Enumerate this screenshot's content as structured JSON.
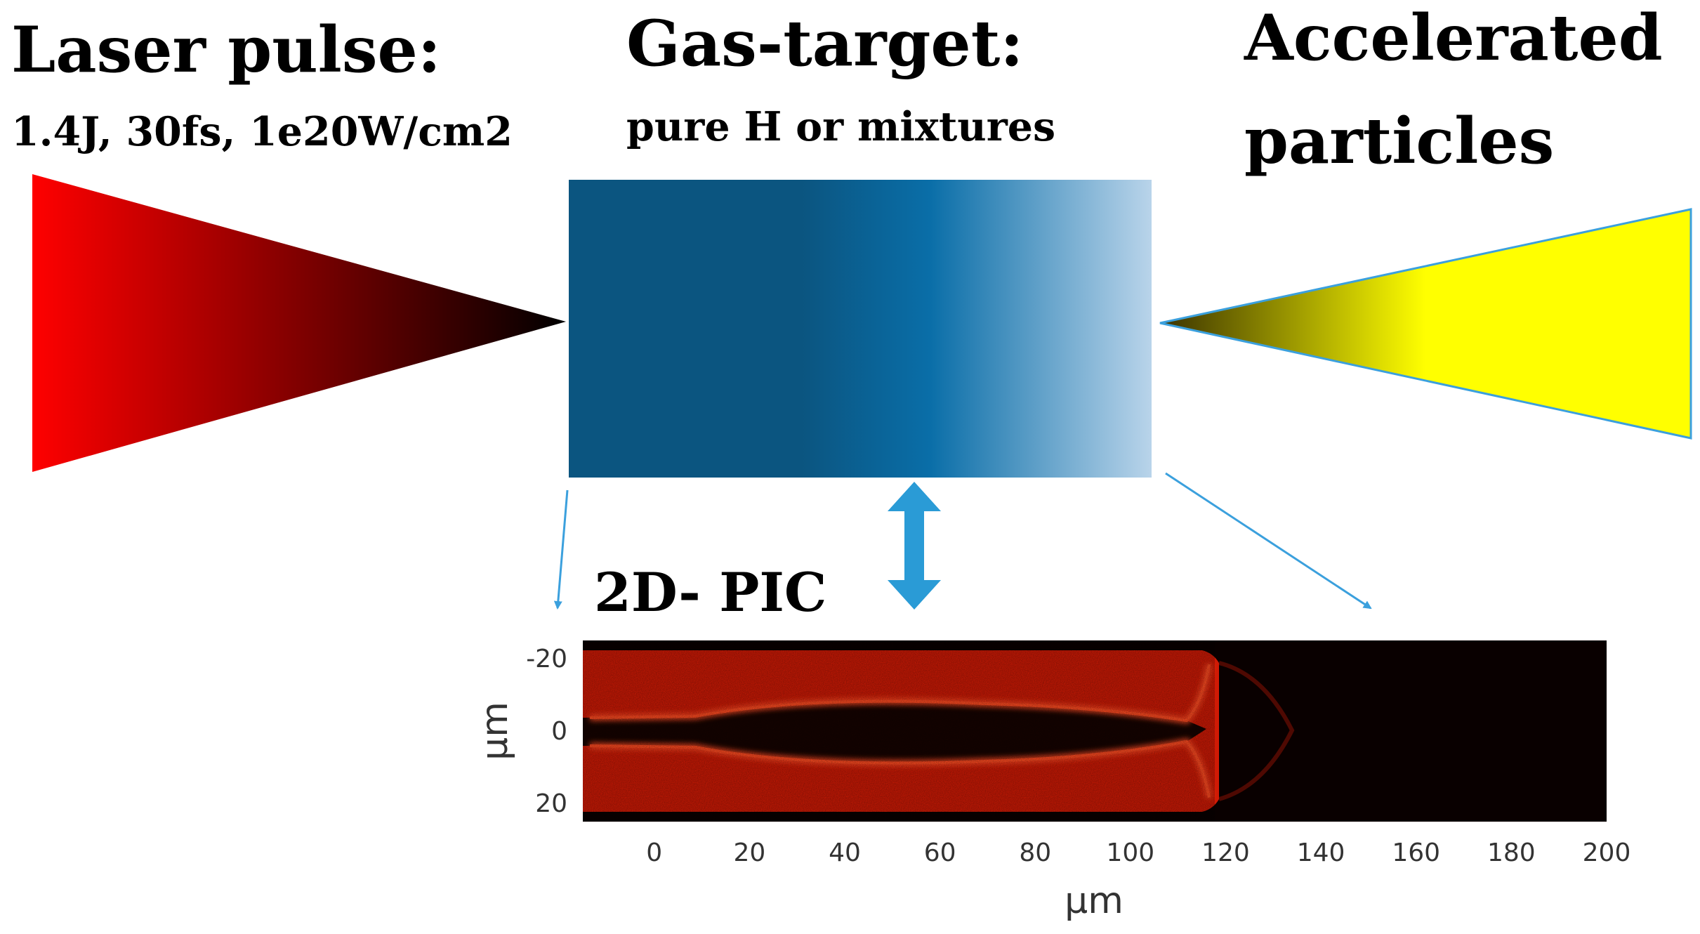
{
  "laser": {
    "title": "Laser pulse:",
    "subtitle": "1.4J, 30fs, 1e20W/cm2",
    "colors": {
      "start": "#ff0000",
      "end": "#000000"
    }
  },
  "target": {
    "title": "Gas-target:",
    "subtitle": "pure  H or mixtures",
    "colors": {
      "dark": "#0b5580",
      "mid": "#0a6ea8",
      "light": "#b9d4ea"
    }
  },
  "output": {
    "title_line1": "Accelerated",
    "title_line2": "particles",
    "colors": {
      "start": "#3a3200",
      "end": "#ffff00"
    }
  },
  "simulation": {
    "label": "2D- PIC",
    "arrow_color": "#2a9bd6",
    "pointer_color": "#3ba0dd",
    "plot": {
      "background": "#090000",
      "plasma_color": "#d01a05",
      "edge_color": "#ff4a20",
      "x_axis": {
        "label": "μm",
        "range": [
          -15,
          200
        ],
        "ticks": [
          "0",
          "20",
          "40",
          "60",
          "80",
          "100",
          "120",
          "140",
          "160",
          "180",
          "200"
        ],
        "tick_values": [
          0,
          20,
          40,
          60,
          80,
          100,
          120,
          140,
          160,
          180,
          200
        ]
      },
      "y_axis": {
        "label": "μm",
        "range": [
          -25,
          25
        ],
        "ticks": [
          "-20",
          "0",
          "20"
        ],
        "tick_values": [
          -20,
          0,
          20
        ]
      }
    }
  }
}
